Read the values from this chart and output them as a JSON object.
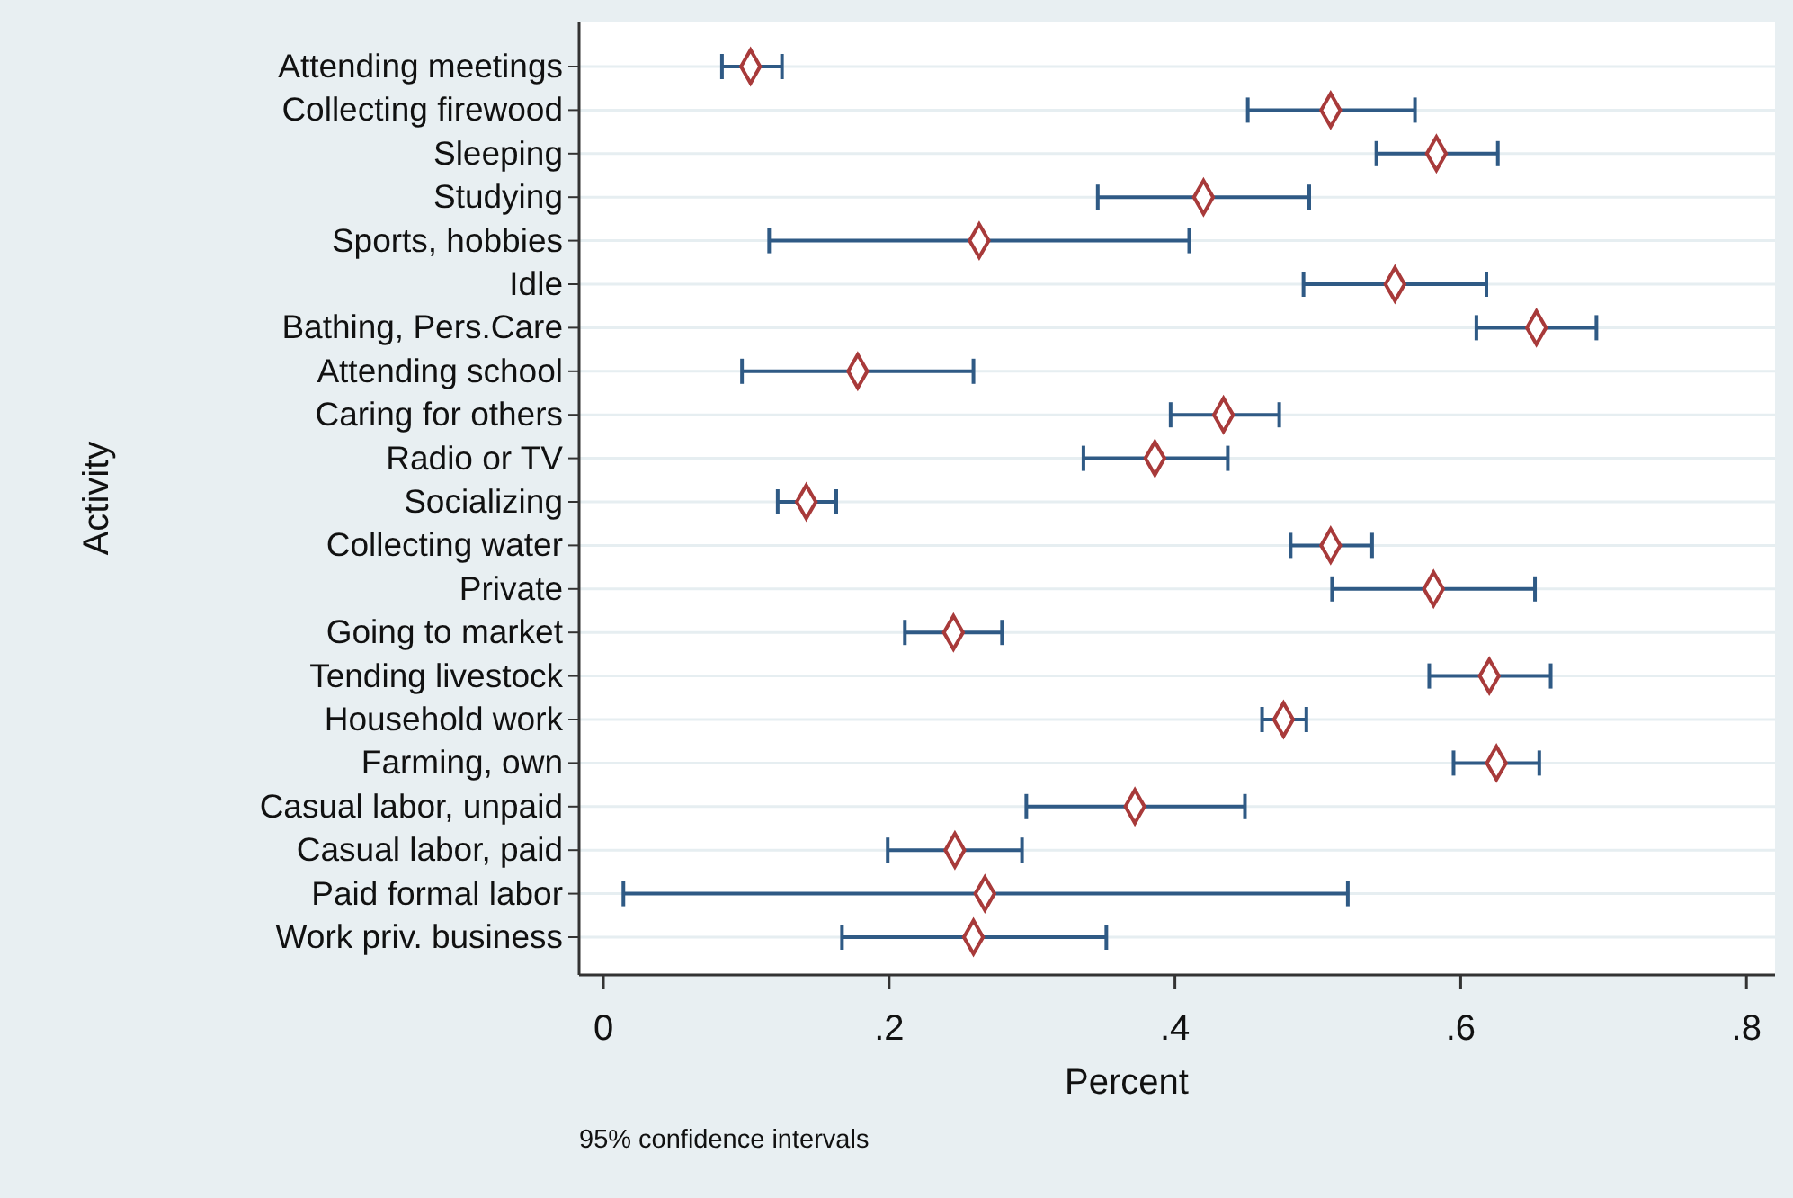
{
  "chart_data": {
    "type": "scatter",
    "orientation": "horizontal",
    "xlabel": "Percent",
    "ylabel": "Activity",
    "annotations": [
      "95% confidence intervals"
    ],
    "categories": [
      "Attending meetings",
      "Collecting firewood",
      "Sleeping",
      "Studying",
      "Sports, hobbies",
      "Idle",
      "Bathing, Pers.Care",
      "Attending school",
      "Caring for others",
      "Radio or TV",
      "Socializing",
      "Collecting water",
      "Private",
      "Going to market",
      "Tending livestock",
      "Household work",
      "Farming, own",
      "Casual labor, unpaid",
      "Casual labor, paid",
      "Paid formal labor",
      "Work priv. business"
    ],
    "series": [
      {
        "color": "#a83a3a",
        "values": [
          0.103,
          0.509,
          0.583,
          0.42,
          0.263,
          0.554,
          0.653,
          0.178,
          0.434,
          0.386,
          0.142,
          0.509,
          0.581,
          0.245,
          0.62,
          0.476,
          0.625,
          0.372,
          0.246,
          0.267,
          0.259
        ],
        "errors": [
          [
            0.083,
            0.125
          ],
          [
            0.451,
            0.568
          ],
          [
            0.541,
            0.626
          ],
          [
            0.346,
            0.494
          ],
          [
            0.116,
            0.41
          ],
          [
            0.49,
            0.618
          ],
          [
            0.611,
            0.695
          ],
          [
            0.097,
            0.259
          ],
          [
            0.397,
            0.473
          ],
          [
            0.336,
            0.437
          ],
          [
            0.122,
            0.163
          ],
          [
            0.481,
            0.538
          ],
          [
            0.51,
            0.652
          ],
          [
            0.211,
            0.279
          ],
          [
            0.578,
            0.663
          ],
          [
            0.461,
            0.492
          ],
          [
            0.595,
            0.655
          ],
          [
            0.296,
            0.449
          ],
          [
            0.199,
            0.293
          ],
          [
            0.014,
            0.521
          ],
          [
            0.167,
            0.352
          ]
        ]
      }
    ],
    "xlim": [
      -0.017,
      0.82
    ],
    "xticks": [
      {
        "value": 0,
        "label": "0"
      },
      {
        "value": 0.2,
        "label": ".2"
      },
      {
        "value": 0.4,
        "label": ".4"
      },
      {
        "value": 0.6,
        "label": ".6"
      },
      {
        "value": 0.8,
        "label": ".8"
      }
    ],
    "grid": "y",
    "marker": "diamond"
  }
}
